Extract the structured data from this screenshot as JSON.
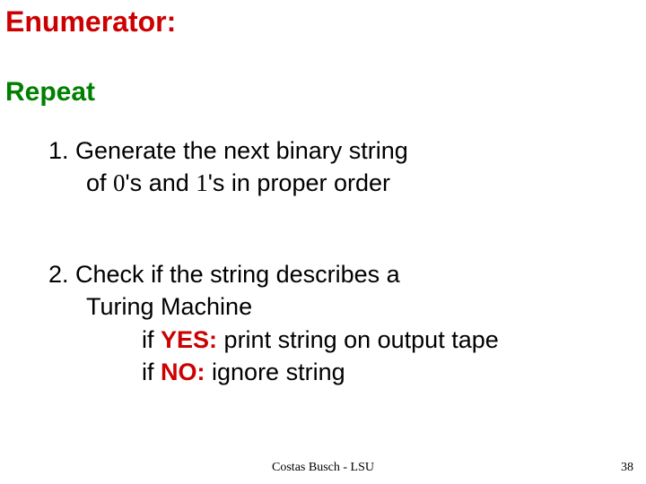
{
  "colors": {
    "title": "#cc0000",
    "repeat": "#008000",
    "body": "#000000",
    "yes": "#cc0000",
    "no": "#cc0000",
    "footer": "#000000"
  },
  "fonts": {
    "body_family": "Comic Sans MS",
    "footer_family": "Times New Roman",
    "title_size_pt": 32,
    "repeat_size_pt": 30,
    "body_size_pt": 27,
    "footer_size_pt": 14
  },
  "title": "Enumerator:",
  "repeat_label": "Repeat",
  "step1": {
    "num": "1.  ",
    "line1_a": "Generate the next binary string",
    "line2_a": "of ",
    "zero": "0",
    "line2_b": "'s and ",
    "one": "1",
    "line2_c": "'s in proper order"
  },
  "step2": {
    "num": "2.  ",
    "line1": "Check if the string describes a",
    "line2": "Turing Machine",
    "line3_a": "if ",
    "yes": "YES:",
    "line3_b": " print string on output tape",
    "line4_a": "if ",
    "no": "NO:",
    "line4_b": "  ignore string"
  },
  "footer": "Costas Busch - LSU",
  "page_number": "38"
}
